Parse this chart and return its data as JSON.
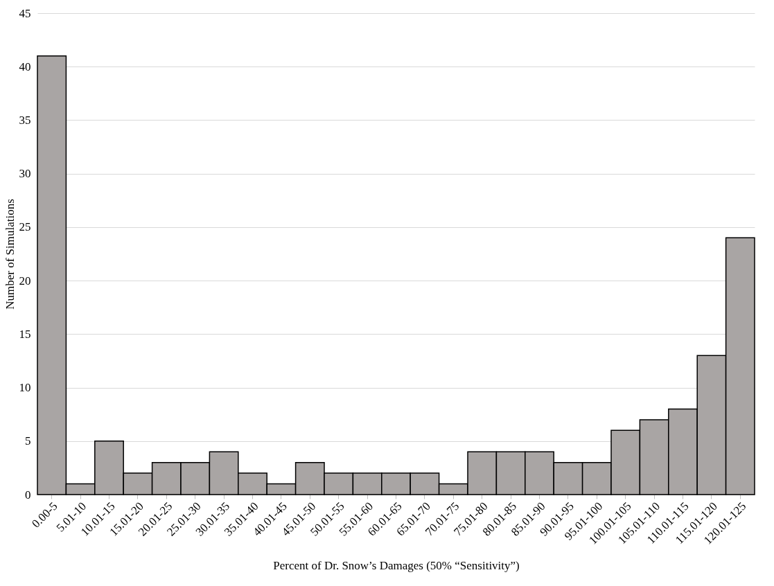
{
  "chart_data": {
    "type": "bar",
    "xlabel": "Percent of Dr. Snow’s Damages (50% “Sensitivity”)",
    "ylabel": "Number of Simulations",
    "categories": [
      "0.00-5",
      "5.01-10",
      "10.01-15",
      "15.01-20",
      "20.01-25",
      "25.01-30",
      "30.01-35",
      "35.01-40",
      "40.01-45",
      "45.01-50",
      "50.01-55",
      "55.01-60",
      "60.01-65",
      "65.01-70",
      "70.01-75",
      "75.01-80",
      "80.01-85",
      "85.01-90",
      "90.01-95",
      "95.01-100",
      "100.01-105",
      "105.01-110",
      "110.01-115",
      "115.01-120",
      "120.01-125"
    ],
    "values": [
      41,
      1,
      5,
      2,
      3,
      3,
      4,
      2,
      1,
      3,
      2,
      2,
      2,
      2,
      1,
      4,
      4,
      4,
      3,
      3,
      6,
      7,
      8,
      13,
      24
    ],
    "color": "#a9a5a4",
    "ylim": [
      0,
      45
    ],
    "yticks": [
      0,
      5,
      10,
      15,
      20,
      25,
      30,
      35,
      40,
      45
    ],
    "grid": "y"
  }
}
